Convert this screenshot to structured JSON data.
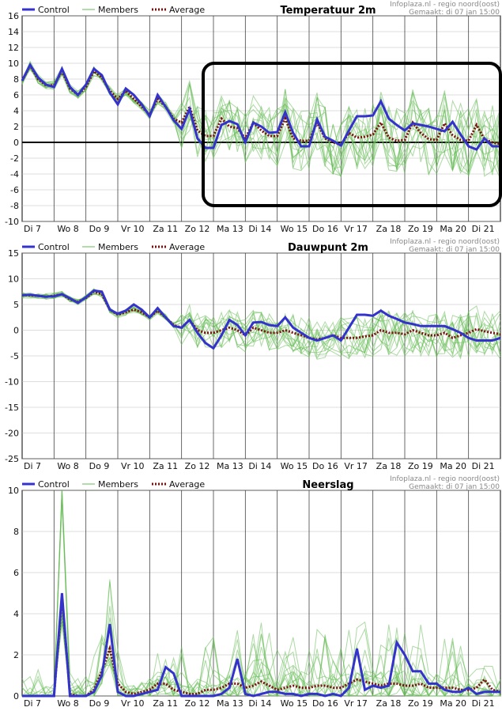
{
  "legend": {
    "control": "Control",
    "members": "Members",
    "average": "Average",
    "control_color": "#3333cc",
    "members_color": "#66bb55",
    "average_color": "#7a1010"
  },
  "chart_data": [
    {
      "type": "line",
      "title": "Temperatuur 2m",
      "credit_line1": "Infoplaza.nl - regio noord(oost)",
      "credit_line2": "Gemaakt: di 07 jan 15:00",
      "ylim": [
        -10,
        16
      ],
      "yticks": [
        -10,
        -8,
        -6,
        -4,
        -2,
        0,
        2,
        4,
        6,
        8,
        10,
        12,
        14,
        16
      ],
      "zero_line": true,
      "x_labels": [
        "Di 7",
        "Wo 8",
        "Do 9",
        "Vr 10",
        "Za 11",
        "Zo 12",
        "Ma 13",
        "Di 14",
        "Wo 15",
        "Do 16",
        "Vr 17",
        "Za 18",
        "Zo 19",
        "Ma 20",
        "Di 21"
      ],
      "series": [
        {
          "name": "Control",
          "values": [
            7.8,
            9.8,
            8.2,
            7.3,
            7.0,
            9.3,
            7.0,
            6.0,
            7.3,
            9.3,
            8.5,
            6.3,
            4.8,
            6.8,
            6.0,
            4.8,
            3.3,
            6.0,
            4.5,
            2.8,
            1.7,
            4.2,
            0.5,
            -0.7,
            -0.7,
            2.2,
            2.7,
            2.3,
            0,
            2.5,
            2.0,
            1.2,
            1.3,
            3.8,
            1.2,
            -0.5,
            -0.5,
            2.9,
            0.7,
            0.2,
            -0.4,
            1.5,
            3.3,
            3.3,
            3.4,
            5.2,
            3.0,
            2.2,
            1.5,
            2.4,
            2.2,
            2.0,
            1.7,
            1.4,
            2.6,
            1.0,
            -0.5,
            -0.9,
            0.5,
            -0.5,
            -0.5
          ]
        },
        {
          "name": "Average",
          "values": [
            7.8,
            9.7,
            8.0,
            7.2,
            7.2,
            9.0,
            6.8,
            6.0,
            7.0,
            9.0,
            8.2,
            6.5,
            5.5,
            6.5,
            5.5,
            4.5,
            3.5,
            5.5,
            4.5,
            3.0,
            2.5,
            4.5,
            1.5,
            0.8,
            0.8,
            3.0,
            2.0,
            1.8,
            0.5,
            2.5,
            1.5,
            0.8,
            0.8,
            3.0,
            0.5,
            0.2,
            0.2,
            2.5,
            0.5,
            0.0,
            -0.3,
            1.2,
            0.6,
            0.7,
            1.0,
            2.5,
            0.6,
            0.2,
            0.3,
            2.5,
            1.2,
            0.4,
            0.3,
            2.4,
            0.9,
            0.3,
            0.2,
            2.2,
            0.4,
            0.0,
            -0.2
          ]
        }
      ],
      "annotation": "rounded rectangle highlight Ma 13 – end, -8 to 10",
      "box_yrange": [
        -8,
        10
      ]
    },
    {
      "type": "line",
      "title": "Dauwpunt 2m",
      "credit_line1": "Infoplaza.nl - regio noord(oost)",
      "credit_line2": "Gemaakt: di 07 jan 15:00",
      "ylim": [
        -25,
        15
      ],
      "yticks": [
        -25,
        -20,
        -15,
        -10,
        -5,
        0,
        5,
        10,
        15
      ],
      "zero_line": false,
      "x_labels": [
        "Di 7",
        "Wo 8",
        "Do 9",
        "Vr 10",
        "Za 11",
        "Zo 12",
        "Ma 13",
        "Di 14",
        "Wo 15",
        "Do 16",
        "Vr 17",
        "Za 18",
        "Zo 19",
        "Ma 20",
        "Di 21"
      ],
      "series": [
        {
          "name": "Control",
          "values": [
            6.8,
            6.9,
            6.7,
            6.5,
            6.6,
            7.0,
            6.2,
            5.3,
            6.4,
            7.7,
            7.5,
            4.0,
            3.2,
            3.8,
            5.0,
            4.0,
            2.5,
            4.3,
            2.5,
            0.8,
            0.5,
            2.0,
            -0.5,
            -2.5,
            -3.5,
            -1.0,
            2.0,
            1.0,
            -1.0,
            1.5,
            1.6,
            1.0,
            0.8,
            2.5,
            0.5,
            -0.5,
            -1.5,
            -2.0,
            -1.5,
            -1.0,
            -2.0,
            0.5,
            3.0,
            3.0,
            2.8,
            3.8,
            2.8,
            2.2,
            1.5,
            1.2,
            0.8,
            0.8,
            0.8,
            0.8,
            0.2,
            -0.5,
            -1.5,
            -2.0,
            -2.0,
            -2.0,
            -1.5
          ]
        },
        {
          "name": "Average",
          "values": [
            6.8,
            6.8,
            6.7,
            6.5,
            6.7,
            7.0,
            6.0,
            5.5,
            6.3,
            7.5,
            7.0,
            4.0,
            3.0,
            3.5,
            4.0,
            3.5,
            2.5,
            3.8,
            2.5,
            1.0,
            0.5,
            2.0,
            0.0,
            -0.5,
            -0.5,
            0.0,
            0.5,
            0.0,
            -1.0,
            0.5,
            0.0,
            -0.5,
            -0.5,
            0.0,
            -0.5,
            -1.0,
            -1.5,
            -1.8,
            -1.5,
            -1.0,
            -1.5,
            -1.5,
            -1.5,
            -1.2,
            -1.0,
            0.0,
            -0.5,
            -0.5,
            -0.8,
            0.0,
            -0.5,
            -1.0,
            -1.0,
            -0.5,
            -1.5,
            -1.0,
            -0.5,
            0.2,
            -0.2,
            -0.5,
            -0.8
          ]
        }
      ]
    },
    {
      "type": "line",
      "title": "Neerslag",
      "credit_line1": "Infoplaza.nl - regio noord(oost)",
      "credit_line2": "Gemaakt: di 07 jan 15:00",
      "ylim": [
        0,
        10
      ],
      "yticks": [
        0,
        2,
        4,
        6,
        8,
        10
      ],
      "zero_line": false,
      "x_labels": [
        "Di 7",
        "Wo 8",
        "Do 9",
        "Vr 10",
        "Za 11",
        "Zo 12",
        "Ma 13",
        "Di 14",
        "Wo 15",
        "Do 16",
        "Vr 17",
        "Za 18",
        "Zo 19",
        "Ma 20",
        "Di 21"
      ],
      "series": [
        {
          "name": "Control",
          "values": [
            0,
            0,
            0,
            0,
            0,
            5.0,
            0,
            0,
            0,
            0.2,
            1.0,
            3.5,
            0.2,
            0,
            0,
            0.1,
            0.2,
            0.3,
            1.4,
            1.1,
            0,
            0,
            0,
            0,
            0,
            0.1,
            0.4,
            1.8,
            0.1,
            0,
            0.1,
            0.2,
            0.2,
            0.1,
            0.1,
            0,
            0.1,
            0.1,
            0,
            0.1,
            0,
            0.4,
            2.3,
            0.3,
            0.5,
            0.4,
            0.5,
            2.6,
            2.0,
            1.2,
            1.2,
            0.6,
            0.6,
            0.3,
            0.2,
            0.2,
            0.4,
            0.1,
            0.2,
            0.2,
            0.2
          ]
        },
        {
          "name": "Average",
          "values": [
            0,
            0,
            0,
            0,
            0,
            4.8,
            0.1,
            0,
            0,
            0.3,
            1.2,
            2.3,
            0.6,
            0.2,
            0.1,
            0.2,
            0.3,
            0.6,
            0.6,
            0.3,
            0.2,
            0.1,
            0.1,
            0.3,
            0.3,
            0.4,
            0.6,
            0.6,
            0.4,
            0.5,
            0.7,
            0.5,
            0.3,
            0.4,
            0.5,
            0.4,
            0.4,
            0.5,
            0.5,
            0.4,
            0.4,
            0.6,
            0.8,
            0.7,
            0.6,
            0.5,
            0.6,
            0.6,
            0.5,
            0.5,
            0.6,
            0.4,
            0.4,
            0.4,
            0.4,
            0.3,
            0.3,
            0.4,
            0.8,
            0.3,
            0.2
          ]
        }
      ]
    }
  ]
}
